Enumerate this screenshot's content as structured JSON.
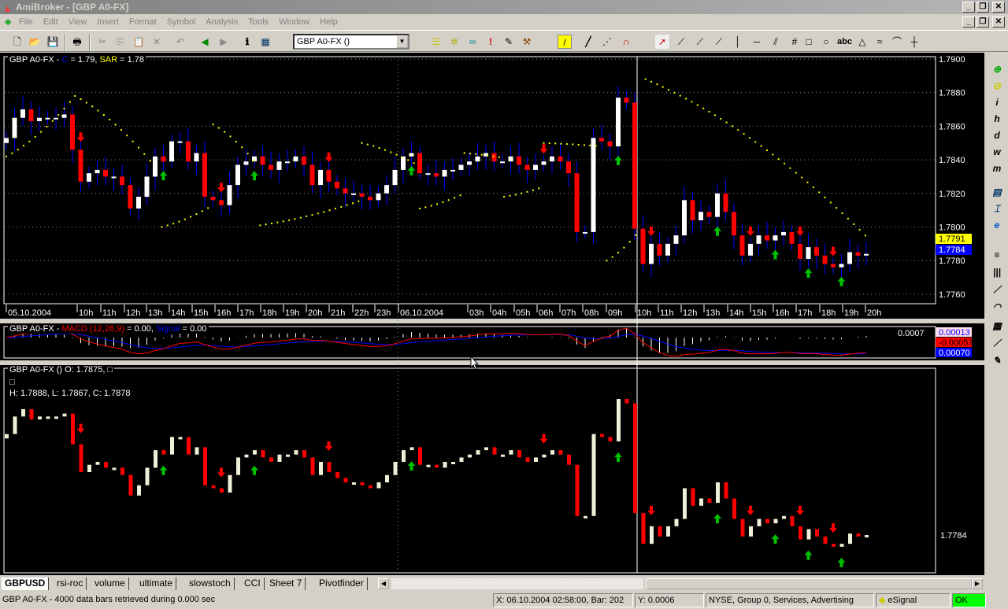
{
  "window": {
    "title": "AmiBroker - [GBP A0-FX]"
  },
  "menu": [
    "File",
    "Edit",
    "View",
    "Insert",
    "Format",
    "Symbol",
    "Analysis",
    "Tools",
    "Window",
    "Help"
  ],
  "toolbar": {
    "symbol_select": "GBP A0-FX ()"
  },
  "colors": {
    "bull": "#ffffff",
    "bear": "#ff0000",
    "sar": "#ffff00",
    "macd": "#ff0000",
    "signal": "#0000ff",
    "buy": "#00c000",
    "sell": "#ff0000",
    "ok": "#00ff00"
  },
  "main_pane": {
    "symbol": "GBP A0-FX - ",
    "c_label": "C",
    "c_value": " = 1.79, ",
    "sar_label": "SAR",
    "sar_value": " = 1.78",
    "y_ticks": [
      "1.7900",
      "1.7880",
      "1.7860",
      "1.7840",
      "1.7820",
      "1.7800",
      "1.7780",
      "1.7760"
    ],
    "last_sar": "1.7791",
    "last_close": "1.7784",
    "x_ticks": [
      "05.10.2004",
      "10h",
      "11h",
      "12h",
      "13h",
      "14h",
      "15h",
      "16h",
      "17h",
      "18h",
      "19h",
      "20h",
      "21h",
      "22h",
      "23h",
      "06.10.2004",
      "03h",
      "04h",
      "05h",
      "06h",
      "07h",
      "08h",
      "09h",
      "10h",
      "11h",
      "12h",
      "13h",
      "14h",
      "15h",
      "16h",
      "17h",
      "18h",
      "19h",
      "20h"
    ]
  },
  "macd_pane": {
    "symbol": "GBP A0-FX - ",
    "macd_label": "MACD (12,26,9)",
    "macd_value": " =  0.00, ",
    "signal_label": "Signal",
    "signal_value": " =  0.00",
    "y_top": "0.0007",
    "macd_last": "0.00013",
    "signal_last": "-0.00057",
    "hist_last": "0.00070"
  },
  "price_pane": {
    "line1": "GBP A0-FX () O: 1.7875, □",
    "line2": "□",
    "line3": "H: 1.7888, L: 1.7867, C: 1.7878",
    "last": "1.7784"
  },
  "chart_data": {
    "type": "candlestick",
    "ylim": [
      1.7755,
      1.79
    ],
    "close": [
      1.7853,
      1.7865,
      1.787,
      1.7863,
      1.7865,
      1.7865,
      1.7865,
      1.7867,
      1.7846,
      1.7827,
      1.7832,
      1.7834,
      1.783,
      1.783,
      1.7825,
      1.7811,
      1.7818,
      1.783,
      1.7842,
      1.7839,
      1.7851,
      1.7851,
      1.7839,
      1.7844,
      1.7818,
      1.7816,
      1.7813,
      1.7825,
      1.7837,
      1.7839,
      1.7842,
      1.7837,
      1.7834,
      1.7839,
      1.7839,
      1.7842,
      1.7837,
      1.7825,
      1.7834,
      1.7827,
      1.7823,
      1.782,
      1.782,
      1.7818,
      1.7816,
      1.782,
      1.7825,
      1.7834,
      1.7842,
      1.7844,
      1.7832,
      1.7832,
      1.783,
      1.7834,
      1.7834,
      1.7837,
      1.7839,
      1.7842,
      1.7844,
      1.7839,
      1.7839,
      1.7842,
      1.7837,
      1.7834,
      1.7837,
      1.7839,
      1.7842,
      1.7839,
      1.7832,
      1.7797,
      1.7797,
      1.7853,
      1.7851,
      1.7848,
      1.7877,
      1.7874,
      1.7799,
      1.7778,
      1.779,
      1.7783,
      1.779,
      1.7795,
      1.7816,
      1.7804,
      1.7809,
      1.7806,
      1.782,
      1.7809,
      1.7795,
      1.7783,
      1.779,
      1.7795,
      1.7792,
      1.7795,
      1.7797,
      1.779,
      1.7781,
      1.7788,
      1.7783,
      1.7778,
      1.7776,
      1.7778,
      1.7785,
      1.7783,
      1.7784
    ],
    "sar_segments": [
      [
        0,
        8.3,
        1.7842,
        1.7878
      ],
      [
        8.3,
        17.8,
        1.7878,
        1.7837
      ],
      [
        18.8,
        25,
        1.78,
        1.7813
      ],
      [
        25,
        30,
        1.7861,
        1.7839
      ],
      [
        30.7,
        43,
        1.7801,
        1.7816
      ],
      [
        43,
        49.7,
        1.785,
        1.7837
      ],
      [
        50,
        55.4,
        1.7811,
        1.782
      ],
      [
        55.4,
        60.2,
        1.7844,
        1.7841
      ],
      [
        60.2,
        65,
        1.7818,
        1.7824
      ],
      [
        65,
        72,
        1.785,
        1.7848
      ],
      [
        72.6,
        76.4,
        1.778,
        1.7797
      ],
      [
        77.3,
        104.5,
        1.7888,
        1.7792
      ]
    ],
    "sell_bars": [
      9,
      26,
      39,
      65,
      78,
      90,
      96,
      100
    ],
    "buy_bars": [
      19,
      30,
      49,
      74,
      86,
      93,
      97,
      101
    ]
  },
  "tabs": [
    "GBPUSD",
    "rsi-roc",
    "volume",
    "ultimate",
    "slowstoch",
    "CCI",
    "Sheet 7",
    "Pivotfinder"
  ],
  "status": {
    "message": "GBP A0-FX - 4000 data bars retrieved during 0.000 sec",
    "xpos": "X: 06.10.2004 02:58:00, Bar: 202",
    "ypos": "Y: 0.0006",
    "info": "NYSE, Group 0, Services, Advertising",
    "source": "eSignal",
    "state": "OK"
  }
}
